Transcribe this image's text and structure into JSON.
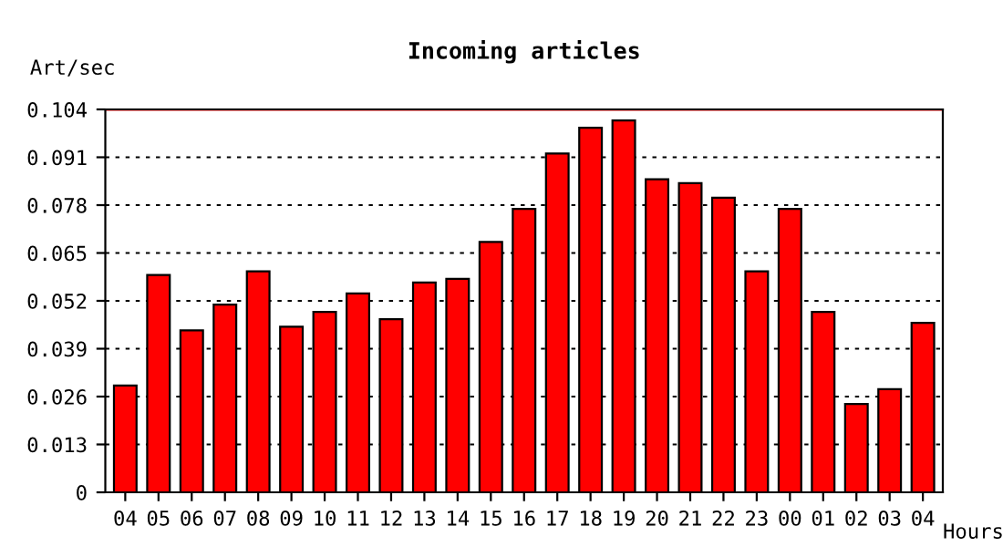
{
  "chart_data": {
    "type": "bar",
    "title": "Incoming articles",
    "ylabel": "Art/sec",
    "xlabel": "Hours",
    "categories": [
      "04",
      "05",
      "06",
      "07",
      "08",
      "09",
      "10",
      "11",
      "12",
      "13",
      "14",
      "15",
      "16",
      "17",
      "18",
      "19",
      "20",
      "21",
      "22",
      "23",
      "00",
      "01",
      "02",
      "03",
      "04"
    ],
    "values": [
      0.029,
      0.059,
      0.044,
      0.051,
      0.06,
      0.045,
      0.049,
      0.054,
      0.047,
      0.057,
      0.058,
      0.068,
      0.077,
      0.092,
      0.099,
      0.101,
      0.085,
      0.084,
      0.08,
      0.06,
      0.077,
      0.049,
      0.024,
      0.028,
      0.046
    ],
    "color": "#ff0000",
    "ylim": [
      0,
      0.104
    ],
    "yticks": [
      0,
      0.013,
      0.026,
      0.039,
      0.052,
      0.065,
      0.078,
      0.091,
      0.104
    ],
    "grid": "y",
    "ref_lines": [
      {
        "axis": "y",
        "value": 0.104,
        "color": "#ff0000"
      }
    ]
  }
}
